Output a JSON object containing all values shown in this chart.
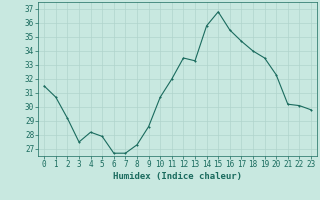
{
  "x": [
    0,
    1,
    2,
    3,
    4,
    5,
    6,
    7,
    8,
    9,
    10,
    11,
    12,
    13,
    14,
    15,
    16,
    17,
    18,
    19,
    20,
    21,
    22,
    23
  ],
  "y": [
    31.5,
    30.7,
    29.2,
    27.5,
    28.2,
    27.9,
    26.7,
    26.7,
    27.3,
    28.6,
    30.7,
    32.0,
    33.5,
    33.3,
    35.8,
    36.8,
    35.5,
    34.7,
    34.0,
    33.5,
    32.3,
    30.2,
    30.1,
    29.8
  ],
  "line_color": "#1a6b5e",
  "marker_color": "#1a6b5e",
  "bg_color": "#c8e8e0",
  "grid_color": "#b0d4cc",
  "xlabel": "Humidex (Indice chaleur)",
  "ylabel": "",
  "xlim": [
    -0.5,
    23.5
  ],
  "ylim": [
    26.5,
    37.5
  ],
  "yticks": [
    27,
    28,
    29,
    30,
    31,
    32,
    33,
    34,
    35,
    36,
    37
  ],
  "xticks": [
    0,
    1,
    2,
    3,
    4,
    5,
    6,
    7,
    8,
    9,
    10,
    11,
    12,
    13,
    14,
    15,
    16,
    17,
    18,
    19,
    20,
    21,
    22,
    23
  ],
  "tick_color": "#1a6b5e",
  "label_fontsize": 6.5,
  "tick_fontsize": 5.5,
  "linewidth": 0.8,
  "markersize": 1.8
}
